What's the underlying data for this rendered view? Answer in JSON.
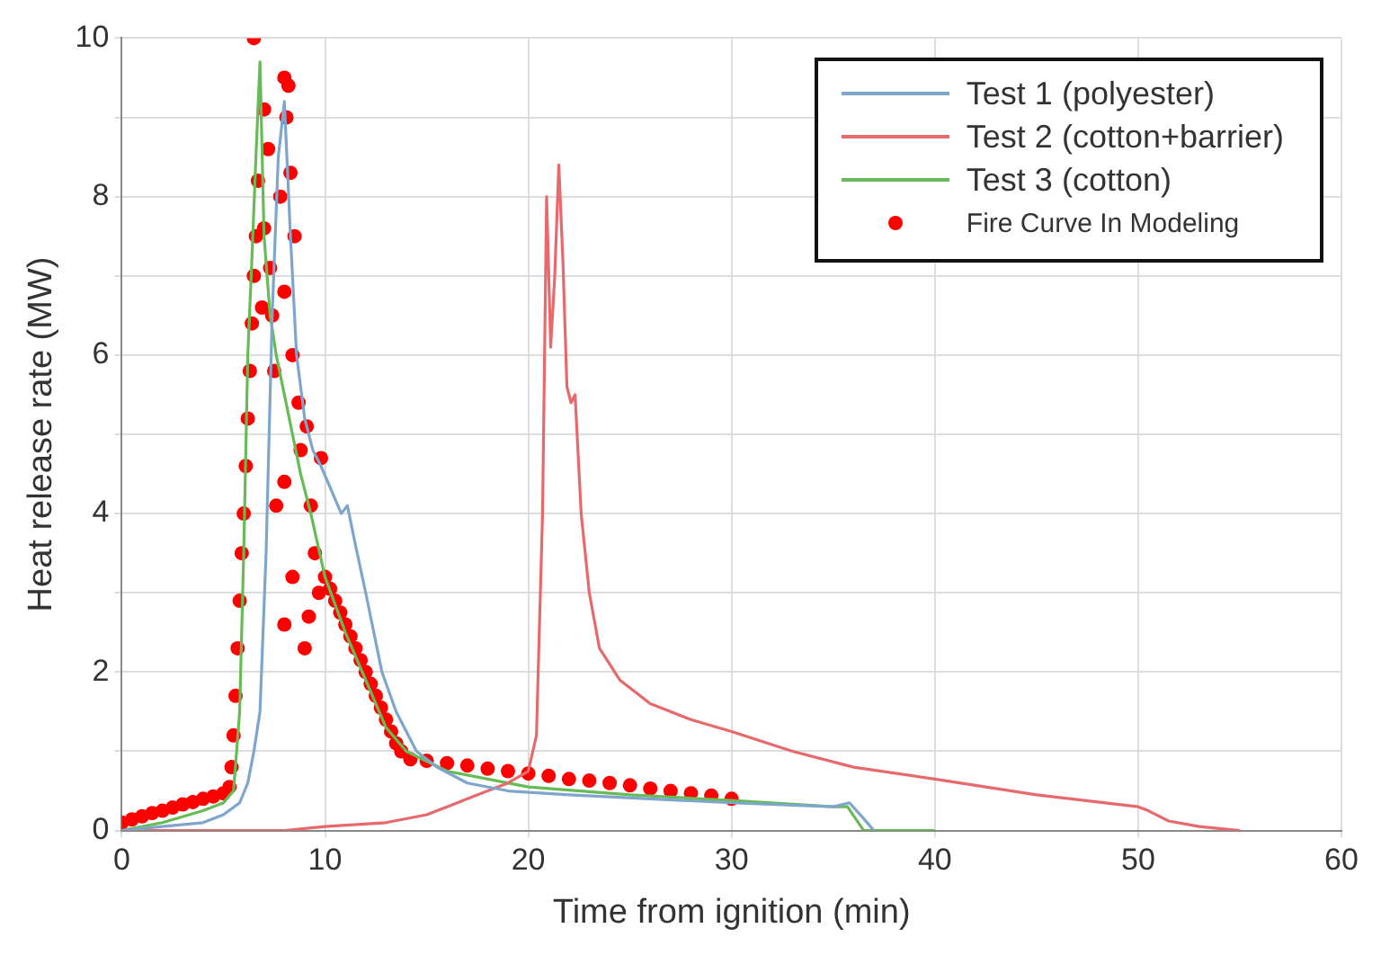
{
  "chart_data": {
    "type": "line",
    "xlabel": "Time from ignition (min)",
    "ylabel": "Heat release rate (MW)",
    "xlim": [
      0,
      60
    ],
    "xticks": [
      0,
      10,
      20,
      30,
      40,
      50,
      60
    ],
    "ylim": [
      0,
      10
    ],
    "yticks": [
      0,
      {
        "value": 1,
        "label": null
      },
      2,
      {
        "value": 3,
        "label": null
      },
      4,
      {
        "value": 5,
        "label": null
      },
      6,
      {
        "value": 7,
        "label": null
      },
      8,
      {
        "value": 9,
        "label": null
      },
      10
    ],
    "grid": true,
    "legend": "top right",
    "marker": "none",
    "series": [
      {
        "name": "Test 1 (polyester)",
        "color": "#7ea6cc",
        "x": [
          0,
          2,
          4,
          5,
          5.8,
          6.2,
          6.5,
          6.8,
          7.1,
          7.4,
          7.7,
          8.0,
          8.3,
          8.6,
          9.0,
          9.4,
          9.8,
          10.3,
          10.8,
          11.1,
          11.5,
          12.0,
          12.8,
          13.5,
          14.5,
          15.5,
          17,
          19,
          22,
          26,
          30,
          33,
          35,
          35.8,
          36.5,
          37
        ],
        "values": [
          0,
          0.05,
          0.1,
          0.2,
          0.35,
          0.6,
          1.0,
          1.5,
          3.5,
          6.5,
          8.5,
          9.2,
          7.5,
          6.0,
          5.2,
          4.8,
          4.6,
          4.3,
          4.0,
          4.1,
          3.6,
          3.0,
          2.0,
          1.5,
          1.0,
          0.8,
          0.6,
          0.5,
          0.45,
          0.4,
          0.35,
          0.32,
          0.3,
          0.35,
          0.15,
          0
        ]
      },
      {
        "name": "Test 2 (cotton+barrier)",
        "color": "#e8696b",
        "x": [
          0,
          5,
          8,
          10,
          13,
          15,
          16,
          17,
          18,
          19,
          20,
          20.4,
          20.7,
          20.9,
          21.1,
          21.3,
          21.5,
          21.7,
          21.9,
          22.1,
          22.3,
          22.6,
          23.0,
          23.5,
          24.5,
          26,
          28,
          30,
          33,
          36,
          40,
          45,
          50,
          50.5,
          51.5,
          53,
          55
        ],
        "values": [
          0,
          0,
          0,
          0.05,
          0.1,
          0.2,
          0.3,
          0.4,
          0.5,
          0.6,
          0.75,
          1.2,
          4.0,
          8.0,
          6.1,
          7.0,
          8.4,
          7.2,
          5.6,
          5.4,
          5.5,
          4.0,
          3.0,
          2.3,
          1.9,
          1.6,
          1.4,
          1.25,
          1.0,
          0.8,
          0.65,
          0.45,
          0.3,
          0.25,
          0.12,
          0.05,
          0
        ]
      },
      {
        "name": "Test 3 (cotton)",
        "color": "#66bb55",
        "x": [
          0,
          2,
          4,
          5,
          5.5,
          5.8,
          6.0,
          6.2,
          6.4,
          6.6,
          6.8,
          7.0,
          7.3,
          7.6,
          8.0,
          8.4,
          8.8,
          9.3,
          10,
          11,
          12,
          13,
          14,
          16,
          20,
          25,
          30,
          35,
          35.7,
          36.5,
          40
        ],
        "values": [
          0,
          0.1,
          0.25,
          0.35,
          0.5,
          1.5,
          3.5,
          6.0,
          7.2,
          8.5,
          9.7,
          7.5,
          6.5,
          6.0,
          5.5,
          5.0,
          4.5,
          4.0,
          3.2,
          2.5,
          1.9,
          1.3,
          1.0,
          0.75,
          0.55,
          0.45,
          0.38,
          0.3,
          0.3,
          0,
          0
        ]
      },
      {
        "name": "Fire Curve In Modeling",
        "type": "scatter",
        "marker": "circle",
        "color": "#ff0000",
        "x": [
          0,
          0.5,
          1,
          1.5,
          2,
          2.5,
          3,
          3.5,
          4,
          4.5,
          5,
          5.3,
          5.4,
          5.5,
          5.6,
          5.7,
          5.8,
          5.9,
          6.0,
          6.1,
          6.2,
          6.3,
          6.4,
          6.5,
          6.6,
          6.7,
          6.5,
          7.0,
          7.2,
          7.0,
          7.3,
          6.9,
          7.4,
          8.0,
          8.2,
          8.1,
          7.8,
          8.3,
          8.5,
          7.5,
          8.0,
          8.4,
          8.7,
          7.6,
          8.0,
          8.4,
          8.0,
          9.0,
          9.3,
          9.1,
          9.5,
          8.8,
          9.2,
          9.8,
          9.7,
          10,
          10.25,
          10.5,
          10.75,
          11,
          11.25,
          11.5,
          11.75,
          12,
          12.25,
          12.5,
          12.75,
          13,
          13.25,
          13.5,
          13.75,
          14.2,
          15,
          16,
          17,
          18,
          19,
          20,
          21,
          22,
          23,
          24,
          25,
          26,
          27,
          28,
          29,
          30
        ],
        "values": [
          0.1,
          0.14,
          0.18,
          0.22,
          0.25,
          0.29,
          0.33,
          0.36,
          0.4,
          0.43,
          0.47,
          0.55,
          0.8,
          1.2,
          1.7,
          2.3,
          2.9,
          3.5,
          4.0,
          4.6,
          5.2,
          5.8,
          6.4,
          7.0,
          7.5,
          8.2,
          10.0,
          9.1,
          8.6,
          7.6,
          7.1,
          6.6,
          6.5,
          9.5,
          9.4,
          9.0,
          8.0,
          8.3,
          7.5,
          5.8,
          6.8,
          6.0,
          5.4,
          4.1,
          4.4,
          3.2,
          2.6,
          2.3,
          4.1,
          5.1,
          3.5,
          4.8,
          2.7,
          4.7,
          3.0,
          3.2,
          3.05,
          2.9,
          2.75,
          2.6,
          2.45,
          2.3,
          2.15,
          2.0,
          1.85,
          1.7,
          1.55,
          1.4,
          1.25,
          1.1,
          1.0,
          0.9,
          0.88,
          0.85,
          0.82,
          0.78,
          0.75,
          0.72,
          0.69,
          0.65,
          0.63,
          0.6,
          0.57,
          0.53,
          0.5,
          0.47,
          0.44,
          0.4
        ]
      }
    ]
  }
}
